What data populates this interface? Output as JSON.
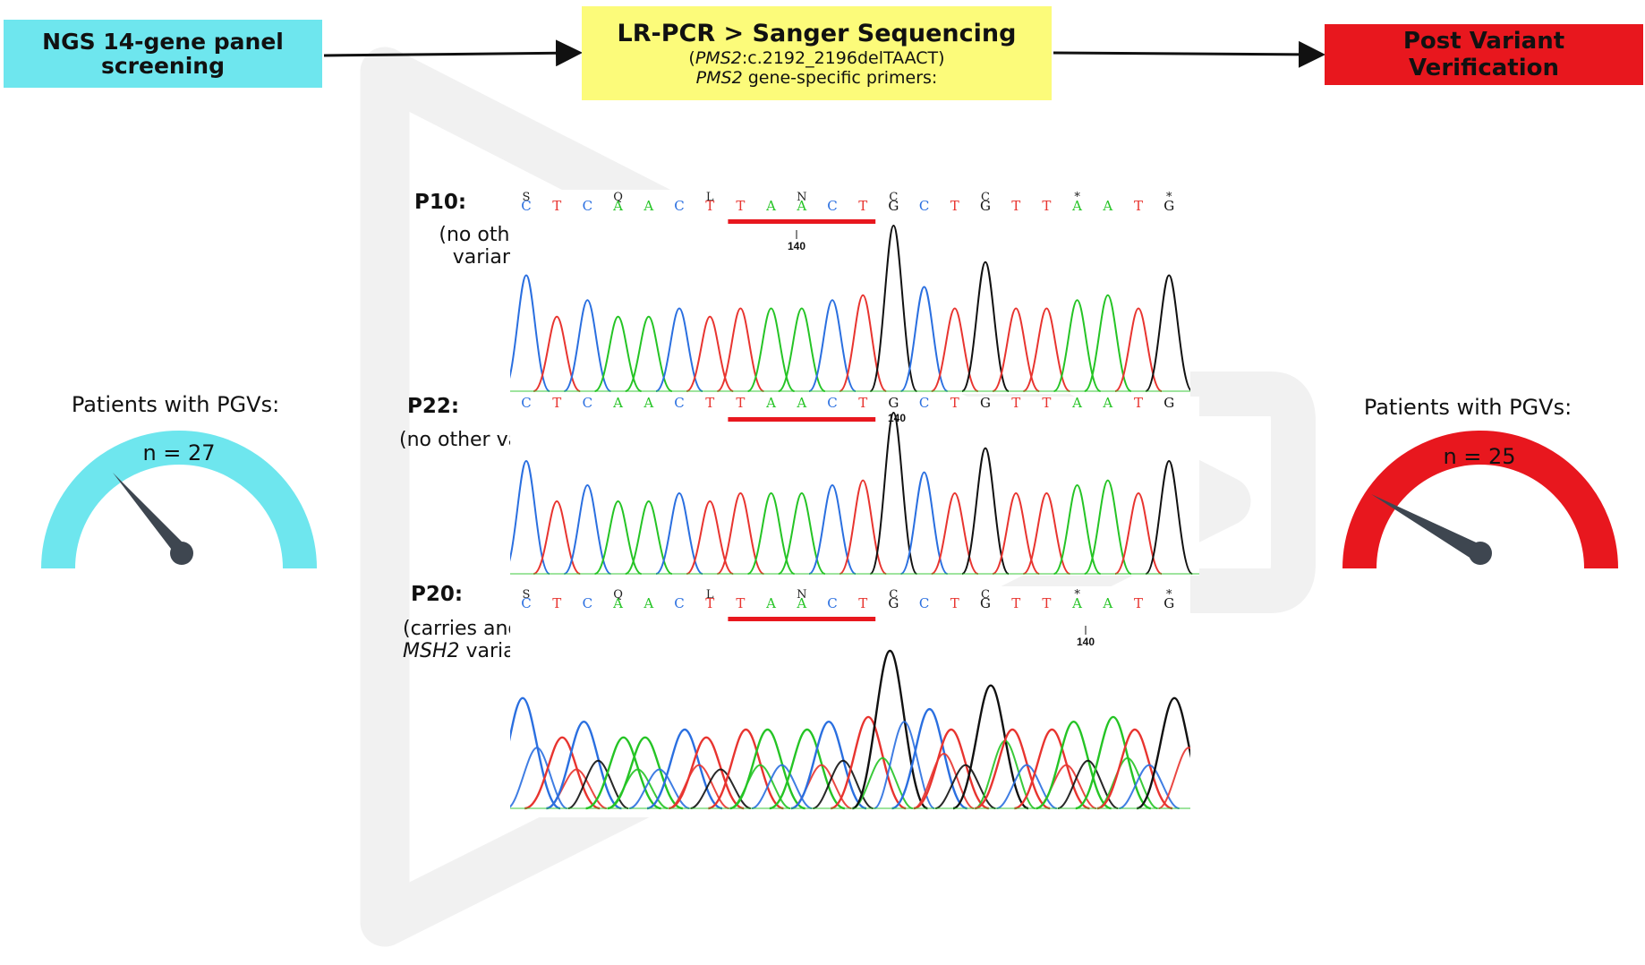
{
  "workflow": {
    "step1": {
      "line1": "NGS 14-gene panel",
      "line2": "screening",
      "color": "#6ee6ee"
    },
    "step2": {
      "title": "LR-PCR > Sanger Sequencing",
      "variant_paren_open": "(",
      "variant_gene": "PMS2",
      "variant_rest": ":c.2192_2196delTAACT)",
      "primer_gene": "PMS2",
      "primer_rest": " gene-specific primers:",
      "color": "#fcfb7a"
    },
    "step3": {
      "label": "Post Variant Verification",
      "color": "#e8171e"
    }
  },
  "gauges": {
    "left": {
      "title": "Patients with PGVs:",
      "count": "n = 27",
      "value": 27,
      "color": "#6ee6ee"
    },
    "right": {
      "title": "Patients with PGVs:",
      "count": "n = 25",
      "value": 25,
      "color": "#e8171e"
    }
  },
  "samples": [
    {
      "id": "P10:",
      "note_line1": "(no other",
      "note_line2": "variant)",
      "position_label": "140"
    },
    {
      "id": "P22:",
      "note_line1": "(no other variant)",
      "position_label": "140"
    },
    {
      "id": "P20:",
      "note_line1": "(carries another pathogenic",
      "note_gene": "MSH2",
      "note_rest": " variant)",
      "position_label": "140"
    }
  ],
  "sequence": [
    "C",
    "T",
    "C",
    "A",
    "A",
    "C",
    "T",
    "T",
    "A",
    "A",
    "C",
    "T",
    "G",
    "C",
    "T",
    "G",
    "T",
    "T",
    "A",
    "A",
    "T",
    "G"
  ],
  "ambiguity_codes": [
    "S",
    "",
    "",
    "Q",
    "",
    "",
    "L",
    "",
    "",
    "N",
    "",
    "",
    "C",
    "",
    "",
    "C",
    "",
    "",
    "*",
    "",
    "",
    "*"
  ],
  "deleted_segment": "TAACT",
  "base_colors": {
    "A": "#25c425",
    "C": "#2a6fe0",
    "G": "#111111",
    "T": "#e8342f"
  },
  "highlight_color": "#e8171e"
}
